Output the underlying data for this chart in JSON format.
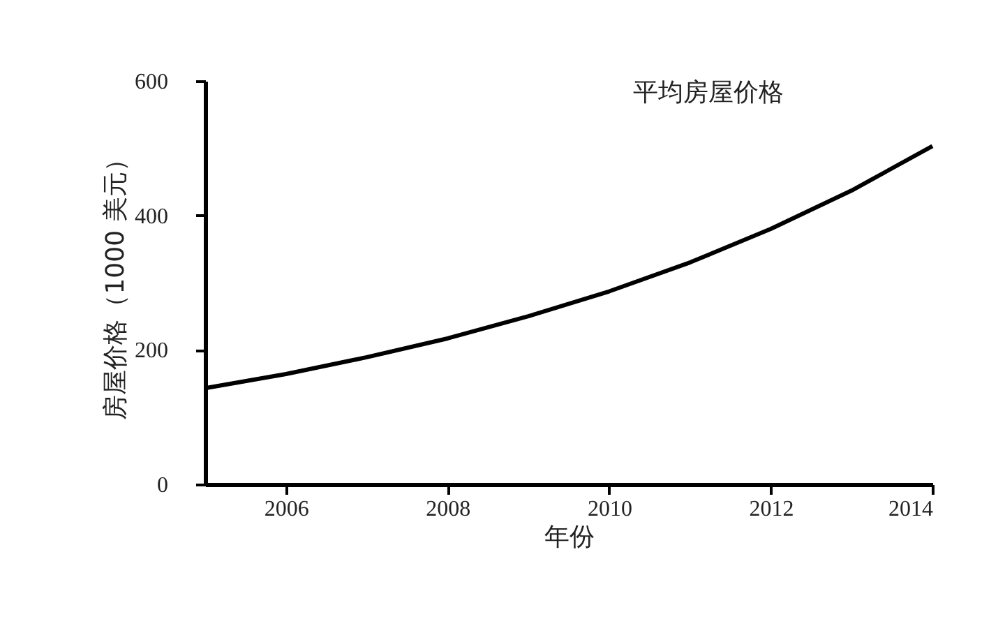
{
  "chart_data": {
    "type": "line",
    "title": "平均房屋价格",
    "xlabel": "年份",
    "ylabel": "房屋价格（1000 美元）",
    "x": [
      2005,
      2006,
      2007,
      2008,
      2009,
      2010,
      2011,
      2012,
      2013,
      2014
    ],
    "series": [
      {
        "color": "#000000",
        "values": [
          143,
          164,
          189,
          217,
          250,
          287,
          330,
          380,
          437,
          503
        ]
      }
    ],
    "xlim": [
      2005,
      2014
    ],
    "xticks": [
      2006,
      2008,
      2010,
      2012,
      2014
    ],
    "ylim": [
      0,
      600
    ],
    "yticks": [
      0,
      200,
      400,
      600
    ],
    "grid": false,
    "legend": false,
    "marker": "none",
    "line_style": "solid"
  }
}
